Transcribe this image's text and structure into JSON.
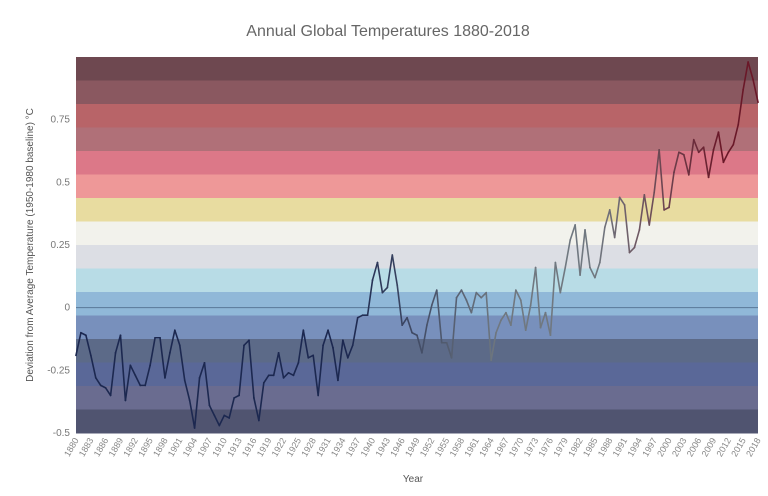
{
  "chart_data": {
    "type": "line",
    "title": "Annual Global Temperatures 1880-2018",
    "xlabel": "Year",
    "ylabel": "Deviation from Average Temperature (1950-1980 baseline) °C",
    "ylim": [
      -0.5,
      1.0
    ],
    "xlim": [
      1880,
      2018
    ],
    "yticks": [
      -0.5,
      -0.25,
      0,
      0.25,
      0.5,
      0.75
    ],
    "ytick_labels": [
      "-0.5",
      "-0.25",
      "0",
      "0.25",
      "0.5",
      "0.75"
    ],
    "xtick_labels": [
      "1880",
      "1883",
      "1886",
      "1889",
      "1892",
      "1895",
      "1898",
      "1901",
      "1904",
      "1907",
      "1910",
      "1913",
      "1916",
      "1919",
      "1922",
      "1925",
      "1928",
      "1931",
      "1934",
      "1937",
      "1940",
      "1943",
      "1946",
      "1949",
      "1952",
      "1955",
      "1958",
      "1961",
      "1964",
      "1967",
      "1970",
      "1973",
      "1976",
      "1979",
      "1982",
      "1985",
      "1988",
      "1991",
      "1994",
      "1997",
      "2000",
      "2003",
      "2006",
      "2009",
      "2012",
      "2015",
      "2018"
    ],
    "grid": false,
    "background_bands": [
      "#6e4850",
      "#8a5860",
      "#b86468",
      "#b07078",
      "#dc7888",
      "#ee9898",
      "#e8dca0",
      "#f2f2ec",
      "#dcdee4",
      "#b8dce6",
      "#90b8d8",
      "#7890bc",
      "#5c6a88",
      "#5a6898",
      "#6a6c90",
      "#505470"
    ],
    "line_colors": {
      "early": "#1c2850",
      "middle": "#707880",
      "late": "#6a1828"
    },
    "x_start": 1880,
    "values": [
      -0.19,
      -0.1,
      -0.11,
      -0.19,
      -0.28,
      -0.31,
      -0.32,
      -0.35,
      -0.18,
      -0.11,
      -0.37,
      -0.23,
      -0.27,
      -0.31,
      -0.31,
      -0.23,
      -0.12,
      -0.12,
      -0.28,
      -0.18,
      -0.09,
      -0.15,
      -0.29,
      -0.37,
      -0.48,
      -0.28,
      -0.22,
      -0.39,
      -0.43,
      -0.47,
      -0.43,
      -0.44,
      -0.36,
      -0.35,
      -0.15,
      -0.13,
      -0.36,
      -0.45,
      -0.3,
      -0.27,
      -0.27,
      -0.18,
      -0.28,
      -0.26,
      -0.27,
      -0.22,
      -0.09,
      -0.2,
      -0.19,
      -0.35,
      -0.15,
      -0.09,
      -0.16,
      -0.29,
      -0.13,
      -0.2,
      -0.15,
      -0.04,
      -0.03,
      -0.03,
      0.11,
      0.18,
      0.06,
      0.08,
      0.21,
      0.09,
      -0.07,
      -0.04,
      -0.1,
      -0.11,
      -0.18,
      -0.07,
      0.01,
      0.07,
      -0.14,
      -0.14,
      -0.2,
      0.04,
      0.07,
      0.03,
      -0.02,
      0.06,
      0.04,
      0.06,
      -0.21,
      -0.1,
      -0.05,
      -0.02,
      -0.07,
      0.07,
      0.03,
      -0.09,
      0.01,
      0.16,
      -0.08,
      -0.02,
      -0.11,
      0.18,
      0.06,
      0.16,
      0.27,
      0.33,
      0.13,
      0.31,
      0.16,
      0.12,
      0.18,
      0.32,
      0.39,
      0.28,
      0.44,
      0.41,
      0.22,
      0.24,
      0.31,
      0.45,
      0.33,
      0.46,
      0.63,
      0.39,
      0.4,
      0.54,
      0.62,
      0.61,
      0.53,
      0.67,
      0.62,
      0.64,
      0.52,
      0.63,
      0.7,
      0.58,
      0.62,
      0.65,
      0.73,
      0.87,
      0.98,
      0.91,
      0.82
    ]
  }
}
